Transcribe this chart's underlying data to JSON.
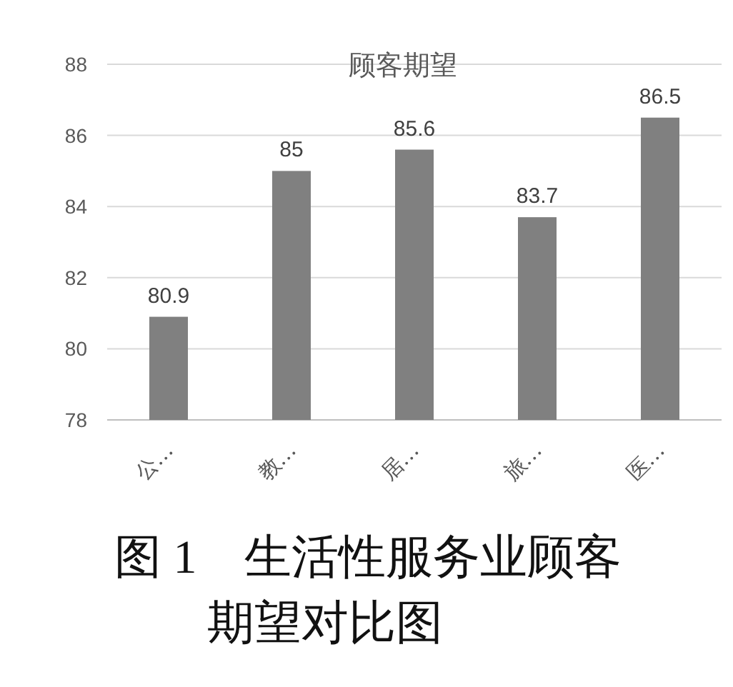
{
  "chart_data": {
    "type": "bar",
    "title": "顾客期望",
    "categories": [
      "公…",
      "教…",
      "居…",
      "旅…",
      "医…"
    ],
    "values": [
      80.9,
      85,
      85.6,
      83.7,
      86.5
    ],
    "color": "#808080",
    "ylim": [
      78,
      88
    ],
    "yticks": [
      78,
      80,
      82,
      84,
      86,
      88
    ],
    "grid": "y",
    "data_labels": true,
    "annotations": [
      "图 1　生活性服务业顾客期望对比图"
    ]
  }
}
